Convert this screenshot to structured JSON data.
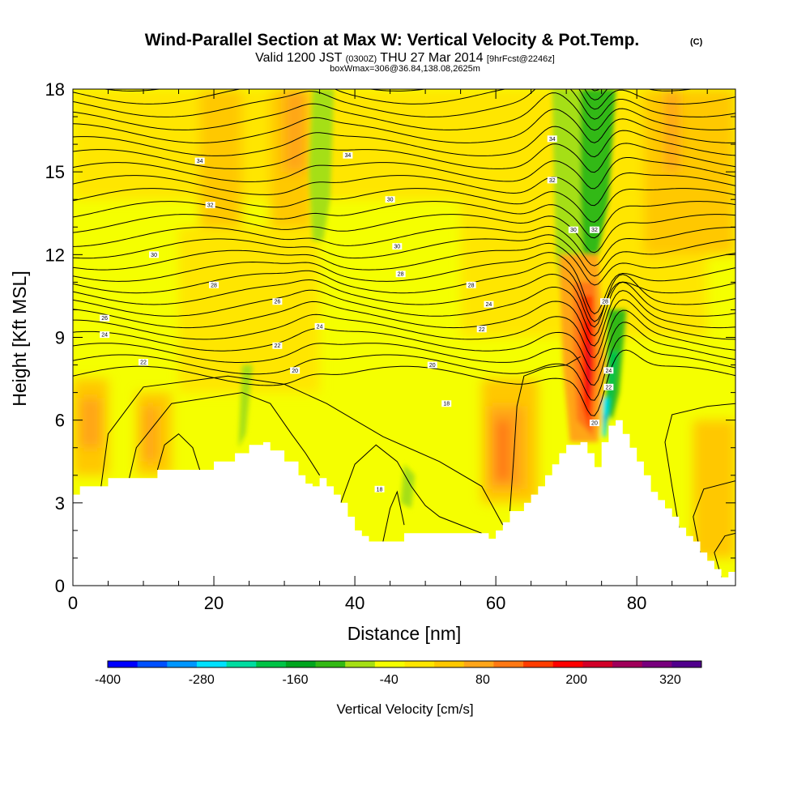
{
  "chart_data": {
    "type": "heatmap",
    "title": "Wind-Parallel Section at Max W: Vertical Velocity & Pot.Temp.",
    "title_mark": "(C)",
    "subtitle_main": "Valid 1200 JST",
    "subtitle_utc": "(0300Z)",
    "subtitle_date": "THU 27 Mar 2014",
    "subtitle_fcst": "[9hrFcst@2246z]",
    "subtitle2": "boxWmax=306@36.84,138.08,2625m",
    "xlabel": "Distance [nm]",
    "ylabel": "Height [Kft MSL]",
    "xlim": [
      0,
      94
    ],
    "ylim": [
      0,
      18
    ],
    "xticks": [
      "0",
      "20",
      "40",
      "60",
      "80"
    ],
    "xtick_values": [
      0,
      20,
      40,
      60,
      80
    ],
    "yticks": [
      "0",
      "3",
      "6",
      "9",
      "12",
      "15",
      "18"
    ],
    "ytick_values": [
      0,
      3,
      6,
      9,
      12,
      15,
      18
    ],
    "colorbar": {
      "label": "Vertical Velocity [cm/s]",
      "tick_labels": [
        "-400",
        "-280",
        "-160",
        "-40",
        "80",
        "200",
        "320"
      ],
      "tick_values": [
        -400,
        -280,
        -160,
        -40,
        80,
        200,
        320
      ],
      "min": -400,
      "max": 360,
      "colors": [
        "#0000ff",
        "#0050ff",
        "#0096ff",
        "#00e1ff",
        "#00dca0",
        "#00c346",
        "#00a51e",
        "#32b914",
        "#a5df14",
        "#f5ff00",
        "#ffe600",
        "#ffc800",
        "#ffa519",
        "#ff7814",
        "#ff3c00",
        "#ff0000",
        "#d20028",
        "#a0005a",
        "#78007d",
        "#50008c"
      ]
    },
    "terrain": [
      [
        0,
        3.3
      ],
      [
        1,
        3.6
      ],
      [
        4,
        3.6
      ],
      [
        5,
        3.9
      ],
      [
        8,
        3.9
      ],
      [
        12,
        4.2
      ],
      [
        15,
        4.2
      ],
      [
        18,
        4.2
      ],
      [
        20,
        4.5
      ],
      [
        23,
        4.8
      ],
      [
        25,
        5.1
      ],
      [
        27,
        5.2
      ],
      [
        28,
        4.9
      ],
      [
        30,
        4.5
      ],
      [
        32,
        4.0
      ],
      [
        33,
        3.7
      ],
      [
        34,
        3.6
      ],
      [
        35,
        3.9
      ],
      [
        36,
        3.6
      ],
      [
        37,
        3.3
      ],
      [
        38,
        3.0
      ],
      [
        39,
        2.5
      ],
      [
        40,
        2.0
      ],
      [
        41,
        1.8
      ],
      [
        42,
        1.6
      ],
      [
        46,
        1.6
      ],
      [
        47,
        1.9
      ],
      [
        50,
        1.9
      ],
      [
        55,
        1.9
      ],
      [
        58,
        1.9
      ],
      [
        59,
        1.7
      ],
      [
        60,
        2.0
      ],
      [
        61,
        2.3
      ],
      [
        62,
        2.7
      ],
      [
        64,
        3.0
      ],
      [
        65,
        3.3
      ],
      [
        66,
        3.6
      ],
      [
        67,
        4.0
      ],
      [
        68,
        4.4
      ],
      [
        69,
        4.8
      ],
      [
        70,
        5.1
      ],
      [
        72,
        5.2
      ],
      [
        73,
        4.8
      ],
      [
        74,
        4.3
      ],
      [
        75,
        5.2
      ],
      [
        76,
        5.8
      ],
      [
        77,
        6.0
      ],
      [
        78,
        5.5
      ],
      [
        79,
        5.0
      ],
      [
        80,
        4.5
      ],
      [
        81,
        4.0
      ],
      [
        82,
        3.4
      ],
      [
        83,
        3.1
      ],
      [
        84,
        2.8
      ],
      [
        85,
        2.5
      ],
      [
        86,
        2.1
      ],
      [
        87,
        1.8
      ],
      [
        88,
        1.6
      ],
      [
        89,
        1.2
      ],
      [
        90,
        0.9
      ],
      [
        91,
        0.6
      ],
      [
        92,
        0.3
      ],
      [
        93,
        0.5
      ],
      [
        94,
        0.7
      ]
    ],
    "isentrope_labels": [
      {
        "text": "34",
        "x": 18,
        "y": 15.4
      },
      {
        "text": "34",
        "x": 39,
        "y": 15.6
      },
      {
        "text": "34",
        "x": 68,
        "y": 16.2
      },
      {
        "text": "32",
        "x": 19.5,
        "y": 13.8
      },
      {
        "text": "32",
        "x": 68,
        "y": 14.7
      },
      {
        "text": "32",
        "x": 74,
        "y": 12.9
      },
      {
        "text": "30",
        "x": 11.5,
        "y": 12.0
      },
      {
        "text": "30",
        "x": 45,
        "y": 14.0
      },
      {
        "text": "30",
        "x": 46,
        "y": 12.3
      },
      {
        "text": "30",
        "x": 71,
        "y": 12.9
      },
      {
        "text": "28",
        "x": 20,
        "y": 10.9
      },
      {
        "text": "28",
        "x": 46.5,
        "y": 11.3
      },
      {
        "text": "28",
        "x": 56.5,
        "y": 10.9
      },
      {
        "text": "28",
        "x": 75.5,
        "y": 10.3
      },
      {
        "text": "26",
        "x": 29,
        "y": 10.3
      },
      {
        "text": "26",
        "x": 4.5,
        "y": 9.7
      },
      {
        "text": "24",
        "x": 4.5,
        "y": 9.1
      },
      {
        "text": "24",
        "x": 35,
        "y": 9.4
      },
      {
        "text": "24",
        "x": 59,
        "y": 10.2
      },
      {
        "text": "24",
        "x": 76,
        "y": 7.8
      },
      {
        "text": "22",
        "x": 10,
        "y": 8.1
      },
      {
        "text": "22",
        "x": 29,
        "y": 8.7
      },
      {
        "text": "22",
        "x": 58,
        "y": 9.3
      },
      {
        "text": "22",
        "x": 76,
        "y": 7.2
      },
      {
        "text": "20",
        "x": 31.5,
        "y": 7.8
      },
      {
        "text": "20",
        "x": 51,
        "y": 8.0
      },
      {
        "text": "20",
        "x": 74,
        "y": 5.9
      },
      {
        "text": "18",
        "x": 53,
        "y": 6.6
      },
      {
        "text": "18",
        "x": 43.5,
        "y": 3.5
      }
    ]
  }
}
